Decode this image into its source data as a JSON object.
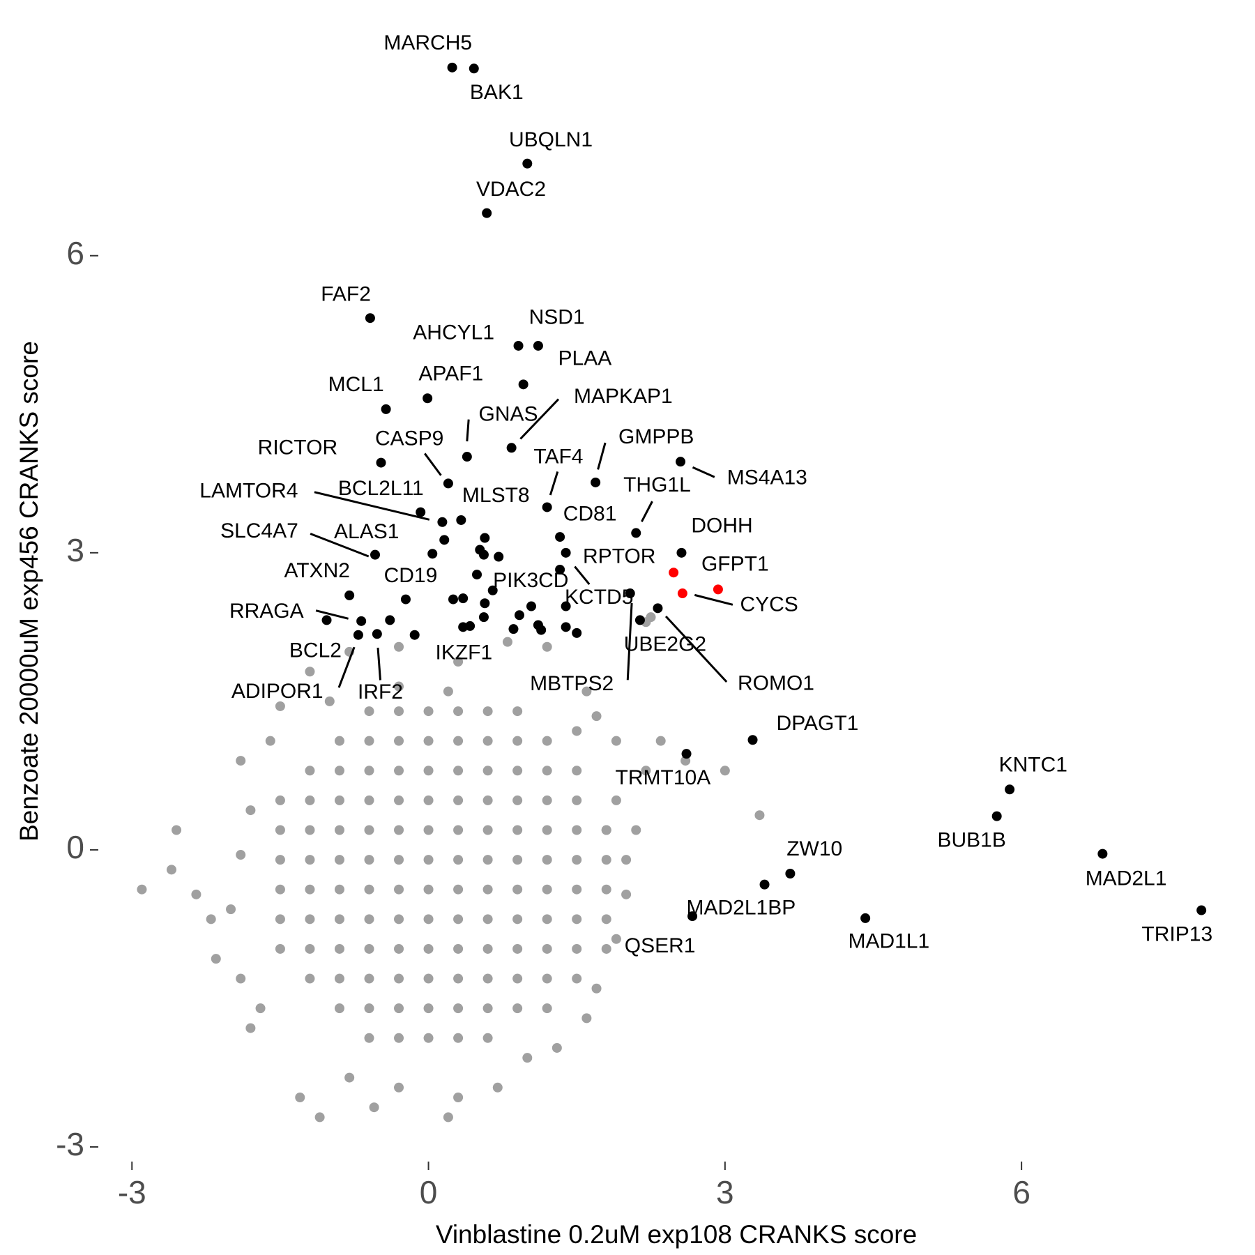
{
  "chart_data": {
    "type": "scatter",
    "xlabel": "Vinblastine 0.2uM exp108 CRANKS score",
    "ylabel": "Benzoate 20000uM exp456 CRANKS score",
    "xlim": [
      -3.27,
      8.2
    ],
    "ylim": [
      -3.19,
      8.42
    ],
    "xticks": [
      -3,
      0,
      3,
      6
    ],
    "yticks": [
      -3,
      0,
      3,
      6
    ],
    "series": [
      {
        "color": "#a0a0a0",
        "x": [
          -0.6,
          -0.3,
          0,
          0.3,
          0.6,
          -0.9,
          -0.6,
          -0.3,
          0,
          0.3,
          0.6,
          0.9,
          1.2,
          -1.2,
          -0.9,
          -0.6,
          -0.3,
          0,
          0.3,
          0.6,
          0.9,
          1.2,
          1.5,
          -1.5,
          -1.2,
          -0.9,
          -0.6,
          -0.3,
          0,
          0.3,
          0.6,
          0.9,
          1.2,
          1.5,
          -1.5,
          -1.2,
          -0.9,
          -0.6,
          -0.3,
          0,
          0.3,
          0.6,
          0.9,
          1.2,
          1.5,
          1.8,
          -1.5,
          -1.2,
          -0.9,
          -0.6,
          -0.3,
          0,
          0.3,
          0.6,
          0.9,
          1.2,
          1.5,
          1.8,
          -1.5,
          -1.2,
          -0.9,
          -0.6,
          -0.3,
          0,
          0.3,
          0.6,
          0.9,
          1.2,
          1.5,
          1.8,
          -1.5,
          -1.2,
          -0.9,
          -0.6,
          -0.3,
          0,
          0.3,
          0.6,
          0.9,
          1.2,
          1.5,
          1.8,
          -1.5,
          -1.2,
          -0.9,
          -0.6,
          -0.3,
          0,
          0.3,
          0.6,
          0.9,
          1.2,
          1.5,
          -1.2,
          -0.9,
          -0.6,
          -0.3,
          0,
          0.3,
          0.6,
          0.9,
          1.2,
          1.5,
          -0.9,
          -0.6,
          -0.3,
          0,
          0.3,
          0.6,
          0.9,
          1.2,
          -0.6,
          -0.3,
          0,
          0.3,
          0.6,
          0.9,
          0.2,
          -0.3,
          -2.9,
          -2.55,
          -2.6,
          -2.35,
          -2.2,
          -2.15,
          -1.9,
          -1.8,
          -1.3,
          -1.1,
          -0.55,
          -0.3,
          0.3,
          0.7,
          1.0,
          1.6,
          1.7,
          1.9,
          2.0,
          2.0,
          1.9,
          2.35,
          1.9,
          2.2,
          3.0,
          3.35,
          2.2,
          2.25,
          1.7,
          1.6,
          1.2,
          0.8,
          -0.3,
          -0.8,
          -1.2,
          -1.0,
          -1.5,
          -1.6,
          -1.9,
          -1.8,
          -1.9,
          -2.0,
          -1.7,
          -0.8,
          0.2,
          1.3,
          1.8,
          1.8,
          1.5,
          0.3,
          2.6,
          2.1
        ],
        "y": [
          -1.9,
          -1.9,
          -1.9,
          -1.9,
          -1.9,
          -1.6,
          -1.6,
          -1.6,
          -1.6,
          -1.6,
          -1.6,
          -1.6,
          -1.6,
          -1.3,
          -1.3,
          -1.3,
          -1.3,
          -1.3,
          -1.3,
          -1.3,
          -1.3,
          -1.3,
          -1.3,
          -1.0,
          -1.0,
          -1.0,
          -1.0,
          -1.0,
          -1.0,
          -1.0,
          -1.0,
          -1.0,
          -1.0,
          -1.0,
          -0.7,
          -0.7,
          -0.7,
          -0.7,
          -0.7,
          -0.7,
          -0.7,
          -0.7,
          -0.7,
          -0.7,
          -0.7,
          -0.7,
          -0.4,
          -0.4,
          -0.4,
          -0.4,
          -0.4,
          -0.4,
          -0.4,
          -0.4,
          -0.4,
          -0.4,
          -0.4,
          -0.4,
          -0.1,
          -0.1,
          -0.1,
          -0.1,
          -0.1,
          -0.1,
          -0.1,
          -0.1,
          -0.1,
          -0.1,
          -0.1,
          -0.1,
          0.2,
          0.2,
          0.2,
          0.2,
          0.2,
          0.2,
          0.2,
          0.2,
          0.2,
          0.2,
          0.2,
          0.2,
          0.5,
          0.5,
          0.5,
          0.5,
          0.5,
          0.5,
          0.5,
          0.5,
          0.5,
          0.5,
          0.5,
          0.8,
          0.8,
          0.8,
          0.8,
          0.8,
          0.8,
          0.8,
          0.8,
          0.8,
          0.8,
          1.1,
          1.1,
          1.1,
          1.1,
          1.1,
          1.1,
          1.1,
          1.1,
          1.4,
          1.4,
          1.4,
          1.4,
          1.4,
          1.4,
          1.6,
          1.65,
          -0.4,
          0.2,
          -0.2,
          -0.45,
          -0.7,
          -1.1,
          -1.3,
          -1.8,
          -2.5,
          -2.7,
          -2.6,
          -2.4,
          -2.5,
          -2.4,
          -2.1,
          -1.7,
          -1.4,
          -0.9,
          -0.45,
          -0.1,
          0.5,
          1.1,
          1.1,
          0.8,
          0.8,
          0.35,
          2.3,
          2.35,
          1.35,
          1.6,
          2.05,
          2.1,
          2.05,
          2.0,
          1.8,
          1.5,
          1.45,
          1.1,
          0.9,
          0.4,
          -0.05,
          -0.6,
          -1.6,
          -2.3,
          -2.7,
          -2.0,
          -1.0,
          0.2,
          1.2,
          1.9,
          0.9,
          0.2
        ]
      },
      {
        "color": "#000000",
        "x": [
          0.24,
          0.46,
          1.0,
          0.59,
          -0.59,
          0.91,
          1.11,
          0.96,
          -0.01,
          -0.43,
          0.39,
          0.84,
          0.2,
          -0.48,
          1.69,
          2.55,
          1.2,
          0.14,
          -0.08,
          0.33,
          2.1,
          1.33,
          2.56,
          -0.54,
          0.16,
          1.39,
          1.39,
          -0.23,
          -0.8,
          0.65,
          -0.68,
          -0.39,
          -0.71,
          -0.52,
          0.35,
          2.04,
          2.14,
          2.32,
          3.28,
          2.61,
          5.88,
          5.75,
          6.82,
          7.82,
          3.66,
          3.4,
          2.67,
          4.42,
          -1.03,
          0.57,
          0.52,
          0.56,
          0.71,
          0.49,
          0.25,
          0.35,
          0.57,
          1.04,
          0.92,
          0.56,
          0.42,
          0.86,
          1.11,
          1.14,
          1.5,
          1.39,
          -0.14,
          0.04,
          1.33
        ],
        "y": [
          7.9,
          7.89,
          6.93,
          6.43,
          5.37,
          5.09,
          5.09,
          4.7,
          4.56,
          4.45,
          3.97,
          4.06,
          3.7,
          3.91,
          3.71,
          3.92,
          3.46,
          3.31,
          3.41,
          3.33,
          3.2,
          3.16,
          3.0,
          2.98,
          3.13,
          3.0,
          2.46,
          2.53,
          2.57,
          2.62,
          2.31,
          2.32,
          2.17,
          2.18,
          2.25,
          2.59,
          2.32,
          2.44,
          1.11,
          0.97,
          0.61,
          0.34,
          -0.04,
          -0.61,
          -0.24,
          -0.35,
          -0.67,
          -0.69,
          2.32,
          3.15,
          3.03,
          2.98,
          2.96,
          2.78,
          2.53,
          2.54,
          2.49,
          2.46,
          2.37,
          2.35,
          2.26,
          2.23,
          2.27,
          2.22,
          2.19,
          2.25,
          2.17,
          2.99,
          2.83
        ],
        "labels": [
          "MARCH5",
          "BAK1",
          "UBQLN1",
          "VDAC2",
          "FAF2",
          "AHCYL1",
          "NSD1",
          "PLAA",
          "APAF1",
          "MCL1",
          "GNAS",
          "MAPKAP1",
          "CASP9",
          "RICTOR",
          "GMPPB",
          "MS4A13",
          "TAF4",
          "LAMTOR4",
          "BCL2L11",
          "MLST8",
          "THG1L",
          "CD81",
          "DOHH",
          "SLC4A7",
          "ALAS1",
          "RPTOR",
          "KCTD5",
          "CD19",
          "ATXN2",
          "PIK3CD",
          "RRAGA",
          "BCL2",
          "ADIPOR1",
          "IRF2",
          "IKZF1",
          "MBTPS2",
          "UBE2G2",
          "ROMO1",
          "DPAGT1",
          "TRMT10A",
          "KNTC1",
          "BUB1B",
          "MAD2L1",
          "TRIP13",
          "ZW10",
          "MAD2L1BP",
          "QSER1",
          "MAD1L1",
          null,
          null,
          null,
          null,
          null,
          null,
          null,
          null,
          null,
          null,
          null,
          null,
          null,
          null,
          null,
          null,
          null,
          null,
          null,
          null,
          null
        ]
      },
      {
        "color": "#ff0000",
        "x": [
          2.57,
          2.93,
          2.48
        ],
        "y": [
          2.59,
          2.63,
          2.8
        ],
        "labels": [
          "CYCS",
          "GFPT1",
          null
        ]
      }
    ]
  }
}
